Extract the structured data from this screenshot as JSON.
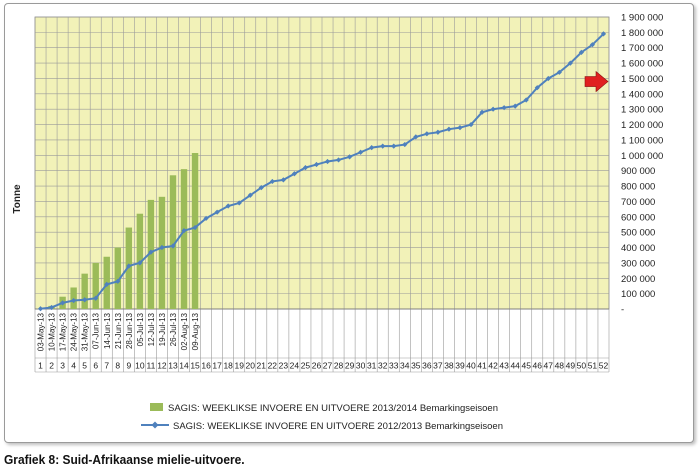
{
  "caption": "Grafiek 8: Suid-Afrikaanse mielie-uitvoere.",
  "chart_data": {
    "type": "bar+line",
    "ylabel": "Tonne",
    "ylim": [
      0,
      1900000
    ],
    "yticks": [
      0,
      100000,
      200000,
      300000,
      400000,
      500000,
      600000,
      700000,
      800000,
      900000,
      1000000,
      1100000,
      1200000,
      1300000,
      1400000,
      1500000,
      1600000,
      1700000,
      1800000,
      1900000
    ],
    "ytick_labels": [
      "-",
      "100 000",
      "200 000",
      "300 000",
      "400 000",
      "500 000",
      "600 000",
      "700 000",
      "800 000",
      "900 000",
      "1 000 000",
      "1 100 000",
      "1 200 000",
      "1 300 000",
      "1 400 000",
      "1 500 000",
      "1 600 000",
      "1 700 000",
      "1 800 000",
      "1 900 000"
    ],
    "y_axis_side": "right",
    "weeks": [
      1,
      2,
      3,
      4,
      5,
      6,
      7,
      8,
      9,
      10,
      11,
      12,
      13,
      14,
      15,
      16,
      17,
      18,
      19,
      20,
      21,
      22,
      23,
      24,
      25,
      26,
      27,
      28,
      29,
      30,
      31,
      32,
      33,
      34,
      35,
      36,
      37,
      38,
      39,
      40,
      41,
      42,
      43,
      44,
      45,
      46,
      47,
      48,
      49,
      50,
      51,
      52
    ],
    "date_labels": [
      "03-May-13",
      "10-May-13",
      "17-May-13",
      "24-May-13",
      "31-May-13",
      "07-Jun-13",
      "14-Jun-13",
      "21-Jun-13",
      "28-Jun-13",
      "05-Jul-13",
      "12-Jul-13",
      "19-Jul-13",
      "26-Jul-13",
      "02-Aug-13",
      "09-Aug-13"
    ],
    "grid": "vertical and horizontal",
    "plot_background": "#f2f2b8",
    "series": [
      {
        "name": "SAGIS: WEEKLIKSE INVOERE EN UITVOERE 2013/2014 Bemarkingseisoen",
        "kind": "bar",
        "color": "#9bbb59",
        "values": [
          2000,
          20000,
          80000,
          140000,
          230000,
          300000,
          340000,
          400000,
          530000,
          620000,
          710000,
          730000,
          870000,
          910000,
          1015000
        ]
      },
      {
        "name": "SAGIS: WEEKLIKSE INVOERE EN UITVOERE 2012/2013 Bemarkingseisoen",
        "kind": "line",
        "color": "#4f81bd",
        "values": [
          2000,
          10000,
          40000,
          55000,
          60000,
          70000,
          160000,
          180000,
          280000,
          300000,
          370000,
          400000,
          410000,
          510000,
          530000,
          590000,
          630000,
          670000,
          690000,
          740000,
          790000,
          830000,
          840000,
          880000,
          920000,
          940000,
          960000,
          970000,
          990000,
          1020000,
          1050000,
          1060000,
          1060000,
          1070000,
          1120000,
          1140000,
          1150000,
          1170000,
          1180000,
          1200000,
          1280000,
          1300000,
          1310000,
          1320000,
          1360000,
          1440000,
          1500000,
          1540000,
          1600000,
          1670000,
          1720000,
          1790000
        ]
      }
    ],
    "annotation": {
      "type": "arrow",
      "color": "#e02020",
      "direction": "right",
      "at_value": 1480000
    },
    "legend_placement": "bottom"
  }
}
